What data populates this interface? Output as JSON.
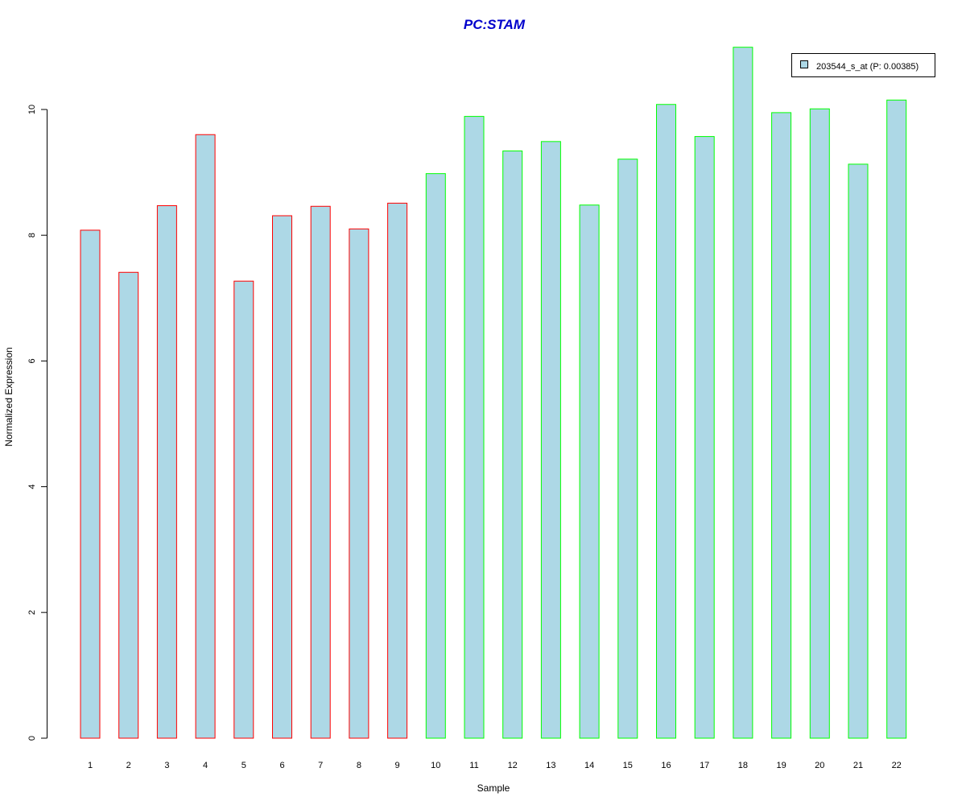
{
  "chart_data": {
    "type": "bar",
    "title": "PC:STAM",
    "xlabel": "Sample",
    "ylabel": "Normalized Expression",
    "categories": [
      "1",
      "2",
      "3",
      "4",
      "5",
      "6",
      "7",
      "8",
      "9",
      "10",
      "11",
      "12",
      "13",
      "14",
      "15",
      "16",
      "17",
      "18",
      "19",
      "20",
      "21",
      "22"
    ],
    "series": [
      {
        "name": "203544_s_at (P: 0.00385)",
        "values": [
          8.08,
          7.41,
          8.47,
          9.6,
          7.27,
          8.31,
          8.46,
          8.1,
          8.51,
          8.98,
          9.89,
          9.34,
          9.49,
          8.48,
          9.21,
          10.08,
          9.57,
          10.99,
          9.95,
          10.01,
          9.13,
          10.15
        ]
      }
    ],
    "bar_fill": "#add8e6",
    "bar_border_colors": [
      "#ff0000",
      "#ff0000",
      "#ff0000",
      "#ff0000",
      "#ff0000",
      "#ff0000",
      "#ff0000",
      "#ff0000",
      "#ff0000",
      "#00ff00",
      "#00ff00",
      "#00ff00",
      "#00ff00",
      "#00ff00",
      "#00ff00",
      "#00ff00",
      "#00ff00",
      "#00ff00",
      "#00ff00",
      "#00ff00",
      "#00ff00",
      "#00ff00"
    ],
    "title_color": "#0000cc",
    "ylim": [
      0,
      11
    ],
    "y_ticks": [
      0,
      2,
      4,
      6,
      8,
      10
    ],
    "grid": false,
    "legend_position": "top-right"
  }
}
